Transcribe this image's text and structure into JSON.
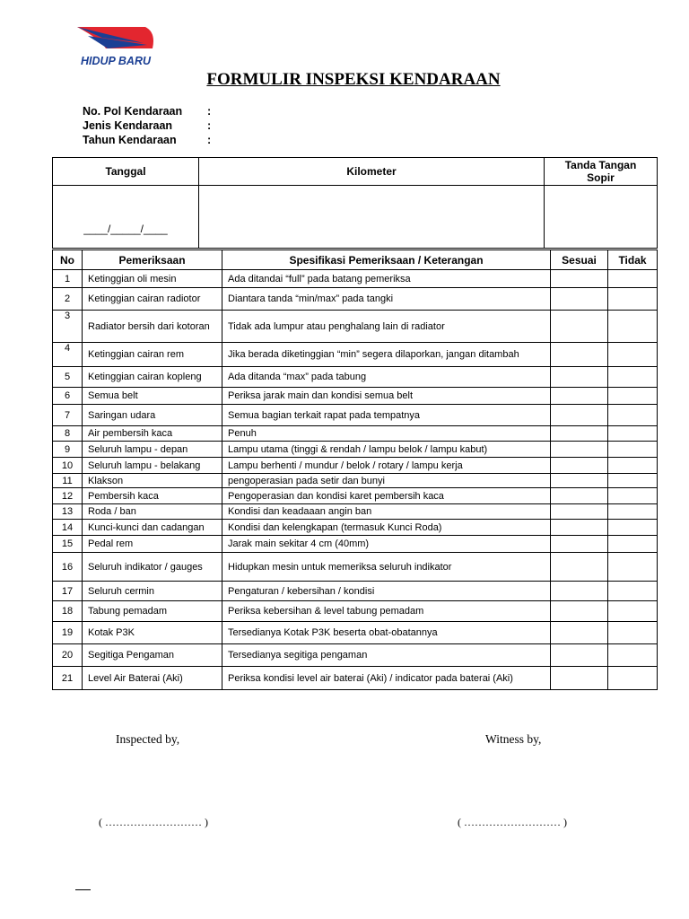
{
  "logo": {
    "text": "HIDUP BARU",
    "colors": {
      "red": "#e3262f",
      "blue": "#1b3f94"
    }
  },
  "title": "FORMULIR INSPEKSI KENDARAAN",
  "info_fields": [
    {
      "label": "No. Pol Kendaraan",
      "sep": ":"
    },
    {
      "label": "Jenis Kendaraan",
      "sep": ":"
    },
    {
      "label": "Tahun Kendaraan",
      "sep": ":"
    }
  ],
  "top_table": {
    "headers": [
      "Tanggal",
      "Kilometer",
      "Tanda Tangan Sopir"
    ],
    "date_placeholder": "____/_____/____"
  },
  "checklist": {
    "headers": [
      "No",
      "Pemeriksaan",
      "Spesifikasi Pemeriksaan / Keterangan",
      "Sesuai",
      "Tidak"
    ],
    "rows": [
      {
        "no": "1",
        "item": "Ketinggian oli mesin",
        "spec": "Ada ditandai “full” pada batang pemeriksa"
      },
      {
        "no": "2",
        "item": "Ketinggian cairan radiotor",
        "spec": "Diantara tanda “min/max” pada tangki"
      },
      {
        "no": "3",
        "item": "Radiator bersih dari kotoran",
        "spec": "Tidak ada lumpur atau penghalang lain di radiator"
      },
      {
        "no": "4",
        "item": "Ketinggian cairan rem",
        "spec": "Jika berada diketinggian “min” segera dilaporkan, jangan ditambah"
      },
      {
        "no": "5",
        "item": "Ketinggian cairan kopleng",
        "spec": "Ada ditanda “max” pada tabung"
      },
      {
        "no": "6",
        "item": "Semua belt",
        "spec": "Periksa jarak main dan kondisi semua belt"
      },
      {
        "no": "7",
        "item": "Saringan udara",
        "spec": "Semua bagian terkait rapat pada tempatnya"
      },
      {
        "no": "8",
        "item": "Air pembersih kaca",
        "spec": "Penuh"
      },
      {
        "no": "9",
        "item": "Seluruh lampu - depan",
        "spec": "Lampu utama (tinggi & rendah / lampu belok / lampu kabut)"
      },
      {
        "no": "10",
        "item": "Seluruh lampu - belakang",
        "spec": "Lampu berhenti / mundur / belok / rotary / lampu kerja"
      },
      {
        "no": "11",
        "item": "Klakson",
        "spec": "pengoperasian pada setir dan bunyi"
      },
      {
        "no": "12",
        "item": "Pembersih kaca",
        "spec": "Pengoperasian dan kondisi karet pembersih kaca"
      },
      {
        "no": "13",
        "item": "Roda / ban",
        "spec": "Kondisi dan keadaaan angin ban"
      },
      {
        "no": "14",
        "item": "Kunci-kunci dan cadangan",
        "spec": "Kondisi dan kelengkapan (termasuk Kunci Roda)"
      },
      {
        "no": "15",
        "item": "Pedal rem",
        "spec": "Jarak main sekitar 4 cm (40mm)"
      },
      {
        "no": "16",
        "item": "Seluruh indikator / gauges",
        "spec": "Hidupkan mesin untuk memeriksa seluruh indikator"
      },
      {
        "no": "17",
        "item": "Seluruh cermin",
        "spec": "Pengaturan / kebersihan / kondisi"
      },
      {
        "no": "18",
        "item": "Tabung pemadam",
        "spec": "Periksa kebersihan & level tabung pemadam"
      },
      {
        "no": "19",
        "item": "Kotak P3K",
        "spec": "Tersedianya Kotak P3K beserta obat-obatannya"
      },
      {
        "no": "20",
        "item": "Segitiga Pengaman",
        "spec": "Tersedianya segitiga pengaman"
      },
      {
        "no": "21",
        "item": "Level Air Baterai (Aki)",
        "spec": "Periksa kondisi level air baterai (Aki) / indicator pada baterai (Aki)"
      }
    ]
  },
  "signatures": {
    "inspected_label": "Inspected by,",
    "witness_label": "Witness by,",
    "inspected_line": "( ……………………… )",
    "witness_line": "( ……………………… )"
  }
}
